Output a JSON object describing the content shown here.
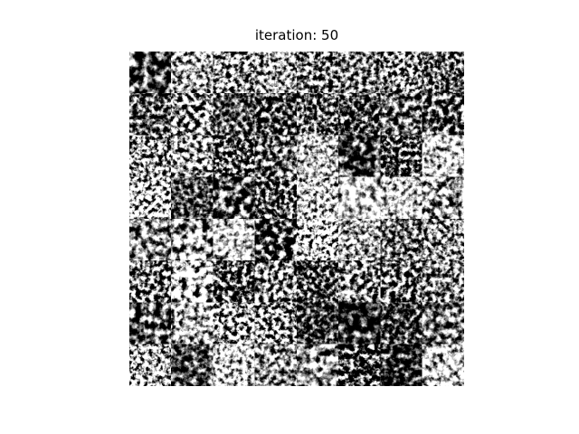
{
  "title": "iteration: 50"
}
